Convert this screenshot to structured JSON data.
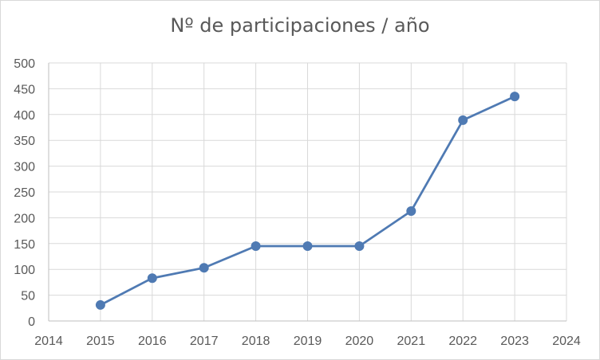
{
  "chart_data": {
    "type": "scatter",
    "title": "Nº de participaciones / año",
    "xlabel": "",
    "ylabel": "",
    "xlim": [
      2014,
      2024
    ],
    "ylim": [
      0,
      500
    ],
    "xticks": [
      2014,
      2015,
      2016,
      2017,
      2018,
      2019,
      2020,
      2021,
      2022,
      2023,
      2024
    ],
    "yticks": [
      0,
      50,
      100,
      150,
      200,
      250,
      300,
      350,
      400,
      450,
      500
    ],
    "grid": true,
    "legend": "none",
    "series": [
      {
        "x": [
          2015,
          2016,
          2017,
          2018,
          2019,
          2020,
          2021,
          2022,
          2023
        ],
        "y": [
          31,
          83,
          103,
          145,
          145,
          145,
          213,
          389,
          435
        ],
        "color": "#4f7ab3",
        "marker": "circle",
        "line": "straight"
      }
    ]
  }
}
